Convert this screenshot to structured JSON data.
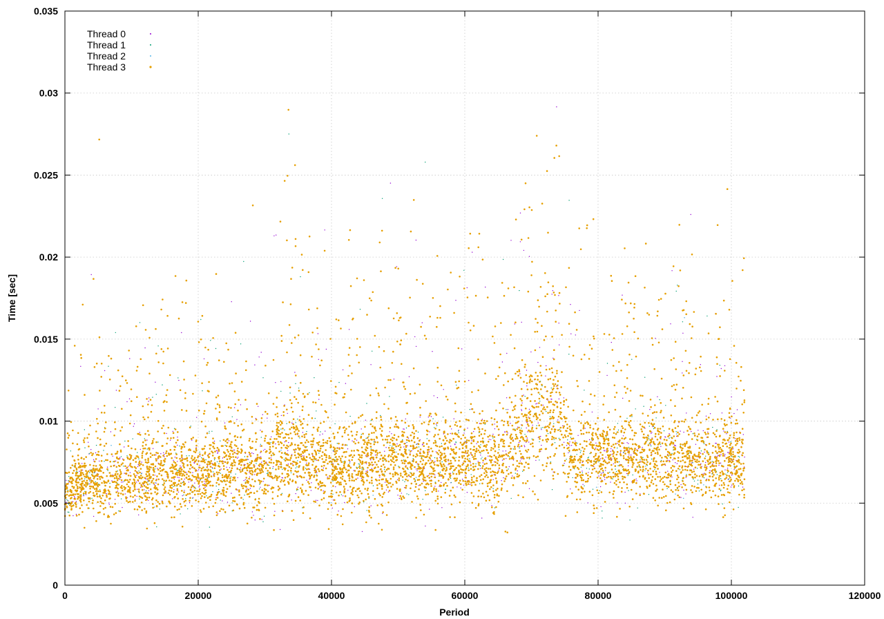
{
  "chart_data": {
    "type": "scatter",
    "title": "",
    "xlabel": "Period",
    "ylabel": "Time [sec]",
    "xlim": [
      0,
      120000
    ],
    "ylim": [
      0,
      0.035
    ],
    "x_ticks": [
      0,
      20000,
      40000,
      60000,
      80000,
      100000,
      120000
    ],
    "y_ticks": [
      0,
      0.005,
      0.01,
      0.015,
      0.02,
      0.025,
      0.03,
      0.035
    ],
    "x_tick_labels": [
      "0",
      "20000",
      "40000",
      "60000",
      "80000",
      "100000",
      "120000"
    ],
    "y_tick_labels": [
      "0",
      "0.005",
      "0.01",
      "0.015",
      "0.02",
      "0.025",
      "0.03",
      "0.035"
    ],
    "grid": true,
    "legend_position": "top-left",
    "series": [
      {
        "name": "Thread 0",
        "color": "#9400d3"
      },
      {
        "name": "Thread 1",
        "color": "#009e73"
      },
      {
        "name": "Thread 2",
        "color": "#56b4e9"
      },
      {
        "name": "Thread 3",
        "color": "#e69f00"
      }
    ],
    "trend": {
      "x": [
        0,
        2000,
        5000,
        10000,
        15000,
        20000,
        25000,
        30000,
        33000,
        36000,
        40000,
        45000,
        50000,
        55000,
        60000,
        65000,
        68000,
        70000,
        72000,
        74000,
        76000,
        80000,
        85000,
        90000,
        95000,
        100000,
        102000
      ],
      "median": [
        0.0052,
        0.0062,
        0.0064,
        0.0064,
        0.0068,
        0.0068,
        0.007,
        0.0069,
        0.0082,
        0.0075,
        0.007,
        0.0073,
        0.0074,
        0.0073,
        0.0076,
        0.0075,
        0.009,
        0.01,
        0.0105,
        0.0103,
        0.0075,
        0.0075,
        0.0076,
        0.0078,
        0.0076,
        0.0076,
        0.0075
      ],
      "spread": [
        0.0012,
        0.0016,
        0.0018,
        0.0018,
        0.002,
        0.002,
        0.0021,
        0.0022,
        0.0028,
        0.0024,
        0.0022,
        0.0023,
        0.0024,
        0.0023,
        0.0024,
        0.0024,
        0.003,
        0.0034,
        0.0036,
        0.0034,
        0.0023,
        0.0022,
        0.0022,
        0.0024,
        0.0022,
        0.0022,
        0.0022
      ]
    },
    "x_max_data": 102000
  }
}
